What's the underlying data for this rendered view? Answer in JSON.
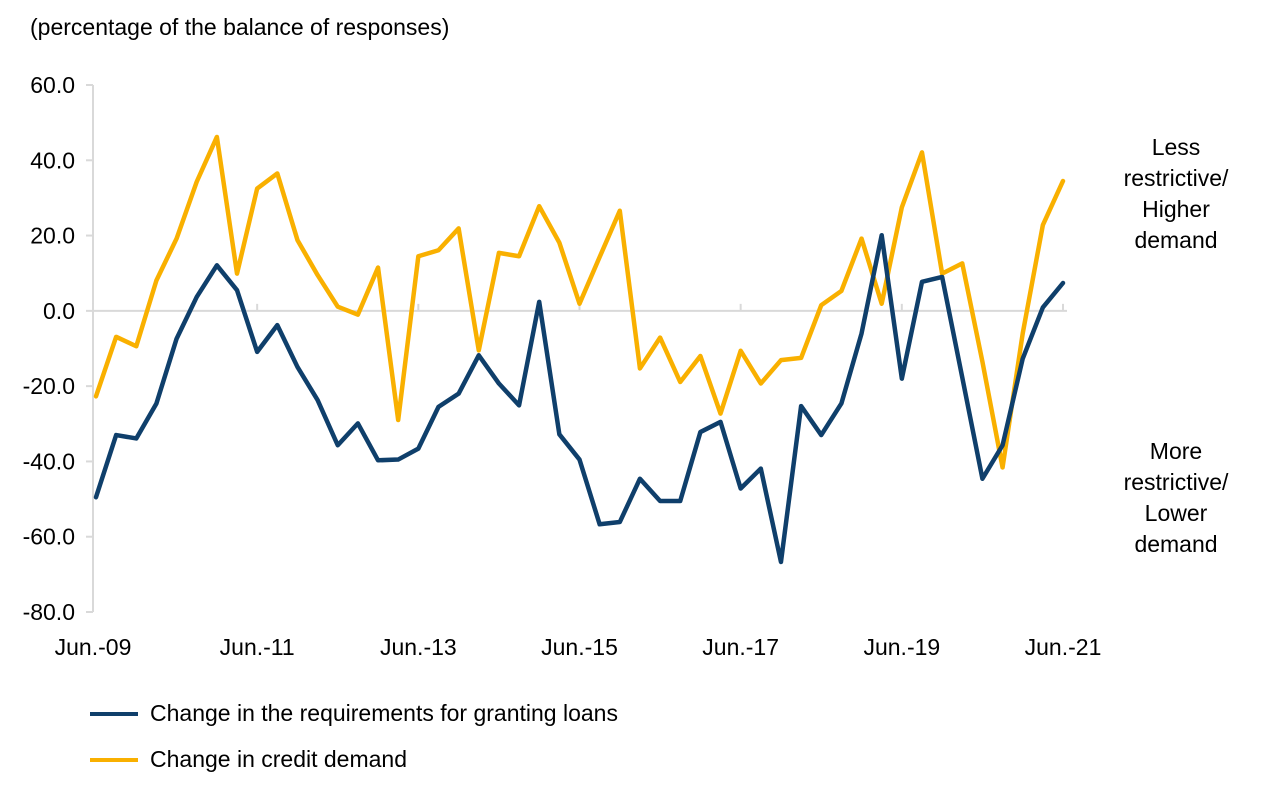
{
  "subtitle": "(percentage of the balance of responses)",
  "annotations": {
    "upper": [
      "Less",
      "restrictive/",
      "Higher",
      "demand"
    ],
    "lower": [
      "More",
      "restrictive/",
      "Lower",
      "demand"
    ]
  },
  "chart_data": {
    "type": "line",
    "title": "",
    "xlabel": "",
    "ylabel": "(percentage of the balance of responses)",
    "ylim": [
      -80,
      60
    ],
    "yticks": [
      "60.0",
      "40.0",
      "20.0",
      "0.0",
      "-20.0",
      "-40.0",
      "-60.0",
      "-80.0"
    ],
    "ytick_values": [
      60,
      40,
      20,
      0,
      -20,
      -40,
      -60,
      -80
    ],
    "xtick_labels": [
      "Jun.-09",
      "Jun.-11",
      "Jun.-13",
      "Jun.-15",
      "Jun.-17",
      "Jun.-19",
      "Jun.-21"
    ],
    "x_frequency": "quarterly, Jun-09 to Jun-21",
    "grid": false,
    "legend_position": "bottom",
    "series": [
      {
        "name": "Change in the requirements for granting loans",
        "color": "#0f3f6b",
        "values": [
          -49.5,
          -33.0,
          -33.9,
          -24.6,
          -7.4,
          3.7,
          12.1,
          5.5,
          -10.9,
          -3.8,
          -14.9,
          -23.7,
          -35.7,
          -29.9,
          -39.7,
          -39.5,
          -36.6,
          -25.5,
          -22.0,
          -11.8,
          -19.3,
          -25.1,
          2.4,
          -32.8,
          -39.5,
          -56.7,
          -56.1,
          -44.6,
          -50.5,
          -50.5,
          -32.2,
          -29.5,
          -47.2,
          -41.9,
          -66.7,
          -25.3,
          -33.0,
          -24.6,
          -6.0,
          20.1,
          -18.0,
          7.7,
          9.0,
          -17.7,
          -44.6,
          -35.7,
          -12.7,
          0.9,
          7.4
        ]
      },
      {
        "name": "Change in credit demand",
        "color": "#f9b000",
        "values": [
          -22.7,
          -6.9,
          -9.4,
          8.1,
          19.2,
          34.3,
          46.2,
          9.9,
          32.5,
          36.5,
          18.8,
          9.5,
          1.1,
          -1.0,
          11.5,
          -29.0,
          14.5,
          16.1,
          21.9,
          -10.5,
          15.4,
          14.5,
          27.8,
          18.1,
          1.9,
          14.3,
          26.6,
          -15.3,
          -7.1,
          -18.9,
          -12.0,
          -27.3,
          -10.6,
          -19.3,
          -13.1,
          -12.5,
          1.5,
          5.3,
          19.2,
          1.9,
          27.5,
          42.1,
          9.9,
          12.6,
          -13.5,
          -41.6,
          -6.0,
          22.8,
          34.5
        ]
      }
    ]
  }
}
